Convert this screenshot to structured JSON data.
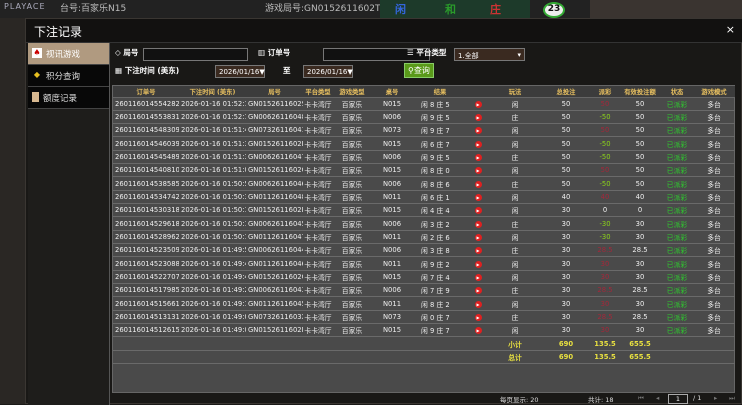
{
  "background": {
    "logo": "PLAYACE",
    "table": "台号:百家乐N15",
    "game_no": "游戏局号:GN0152611602T",
    "road": [
      "闲",
      "和",
      "庄"
    ],
    "count": "23"
  },
  "modal": {
    "title": "下注记录",
    "close": "×"
  },
  "sidebar": {
    "items": [
      {
        "label": "视讯游戏",
        "icon": "cards-icon",
        "active": true
      },
      {
        "label": "积分查询",
        "icon": "diamond-icon"
      },
      {
        "label": "额度记录",
        "icon": "document-icon"
      }
    ]
  },
  "filters": {
    "round_label": "局号",
    "round_value": "",
    "order_label": "订单号",
    "order_value": "",
    "platform_label": "平台类型",
    "platform_value": "1.全部",
    "time_label": "下注时间 (美东)",
    "date_from": "2026/01/16▼",
    "to": "至",
    "date_to": "2026/01/16▼",
    "search": "查询"
  },
  "table": {
    "headers": [
      "订单号",
      "下注时间 (美东)",
      "局号",
      "平台类型",
      "游戏类型",
      "桌号",
      "结果",
      "",
      "玩法",
      "总投注",
      "派彩",
      "有效投注额",
      "状态",
      "游戏模式"
    ],
    "rows": [
      [
        "260116014554282",
        "2026-01-16 01:52:15",
        "GN0152611602S",
        "卡卡湾厅",
        "百家乐",
        "N015",
        "闲 8 庄 5",
        "闲",
        "50",
        "50",
        "50",
        "已派彩",
        "多台"
      ],
      [
        "260116014553831",
        "2026-01-16 01:52:12",
        "GN00626116048",
        "卡卡湾厅",
        "百家乐",
        "N006",
        "闲 9 庄 5",
        "庄",
        "50",
        "-50",
        "50",
        "已派彩",
        "多台"
      ],
      [
        "260116014548309",
        "2026-01-16 01:51:44",
        "GN07326116041",
        "卡卡湾厅",
        "百家乐",
        "N073",
        "闲 9 庄 7",
        "闲",
        "50",
        "50",
        "50",
        "已派彩",
        "多台"
      ],
      [
        "260116014546039",
        "2026-01-16 01:51:33",
        "GN0152611602R",
        "卡卡湾厅",
        "百家乐",
        "N015",
        "闲 6 庄 7",
        "闲",
        "50",
        "-50",
        "50",
        "已派彩",
        "多台"
      ],
      [
        "260116014545489",
        "2026-01-16 01:51:30",
        "GN00626116047",
        "卡卡湾厅",
        "百家乐",
        "N006",
        "闲 9 庄 5",
        "庄",
        "50",
        "-50",
        "50",
        "已派彩",
        "多台"
      ],
      [
        "260116014540810",
        "2026-01-16 01:51:09",
        "GN0152611602Q",
        "卡卡湾厅",
        "百家乐",
        "N015",
        "闲 8 庄 0",
        "闲",
        "50",
        "50",
        "50",
        "已派彩",
        "多台"
      ],
      [
        "260116014538585",
        "2026-01-16 01:50:59",
        "GN00626116046",
        "卡卡湾厅",
        "百家乐",
        "N006",
        "闲 8 庄 6",
        "庄",
        "50",
        "-50",
        "50",
        "已派彩",
        "多台"
      ],
      [
        "260116014534742",
        "2026-01-16 01:50:36",
        "GN01126116048",
        "卡卡湾厅",
        "百家乐",
        "N011",
        "闲 6 庄 1",
        "闲",
        "40",
        "40",
        "40",
        "已派彩",
        "多台"
      ],
      [
        "260116014530318",
        "2026-01-16 01:50:19",
        "GN0152611602P",
        "卡卡湾厅",
        "百家乐",
        "N015",
        "闲 4 庄 4",
        "闲",
        "30",
        "0",
        "0",
        "已派彩",
        "多台"
      ],
      [
        "260116014529618",
        "2026-01-16 01:50:16",
        "GN00626116045",
        "卡卡湾厅",
        "百家乐",
        "N006",
        "闲 3 庄 2",
        "庄",
        "30",
        "-30",
        "30",
        "已派彩",
        "多台"
      ],
      [
        "260116014528962",
        "2026-01-16 01:50:13",
        "GN01126116047",
        "卡卡湾厅",
        "百家乐",
        "N011",
        "闲 2 庄 6",
        "闲",
        "30",
        "-30",
        "30",
        "已派彩",
        "多台"
      ],
      [
        "260116014523509",
        "2026-01-16 01:49:50",
        "GN00626116044",
        "卡卡湾厅",
        "百家乐",
        "N006",
        "闲 3 庄 8",
        "庄",
        "30",
        "28.5",
        "28.5",
        "已派彩",
        "多台"
      ],
      [
        "260116014523088",
        "2026-01-16 01:49:48",
        "GN01126116046",
        "卡卡湾厅",
        "百家乐",
        "N011",
        "闲 9 庄 2",
        "闲",
        "30",
        "30",
        "30",
        "已派彩",
        "多台"
      ],
      [
        "260116014522707",
        "2026-01-16 01:49:46",
        "GN0152611602O",
        "卡卡湾厅",
        "百家乐",
        "N015",
        "闲 7 庄 4",
        "闲",
        "30",
        "30",
        "30",
        "已派彩",
        "多台"
      ],
      [
        "260116014517985",
        "2026-01-16 01:49:23",
        "GN00626116043",
        "卡卡湾厅",
        "百家乐",
        "N006",
        "闲 7 庄 9",
        "庄",
        "30",
        "28.5",
        "28.5",
        "已派彩",
        "多台"
      ],
      [
        "260116014515661",
        "2026-01-16 01:49:13",
        "GN01126116045",
        "卡卡湾厅",
        "百家乐",
        "N011",
        "闲 8 庄 2",
        "闲",
        "30",
        "30",
        "30",
        "已派彩",
        "多台"
      ],
      [
        "260116014513131",
        "2026-01-16 01:49:03",
        "GN0732611603X",
        "卡卡湾厅",
        "百家乐",
        "N073",
        "闲 0 庄 7",
        "庄",
        "30",
        "28.5",
        "28.5",
        "已派彩",
        "多台"
      ],
      [
        "260116014512615",
        "2026-01-16 01:49:00",
        "GN0152611602N",
        "卡卡湾厅",
        "百家乐",
        "N015",
        "闲 9 庄 7",
        "闲",
        "30",
        "30",
        "30",
        "已派彩",
        "多台"
      ]
    ],
    "subtotal": {
      "label": "小计",
      "bet": "690",
      "payout": "135.5",
      "valid": "655.5"
    },
    "total": {
      "label": "总计",
      "bet": "690",
      "payout": "135.5",
      "valid": "655.5"
    }
  },
  "footer": {
    "per_page": "每页显示: 20",
    "total": "共计: 18",
    "page": "1",
    "pages": "/  1"
  },
  "colors": {
    "accent": "#b09a80",
    "payout_positive": "#a4273a",
    "payout_negative": "#8ad01a",
    "status": "#2ecc2e",
    "header": "#e8c060",
    "sum": "#e8e040"
  }
}
